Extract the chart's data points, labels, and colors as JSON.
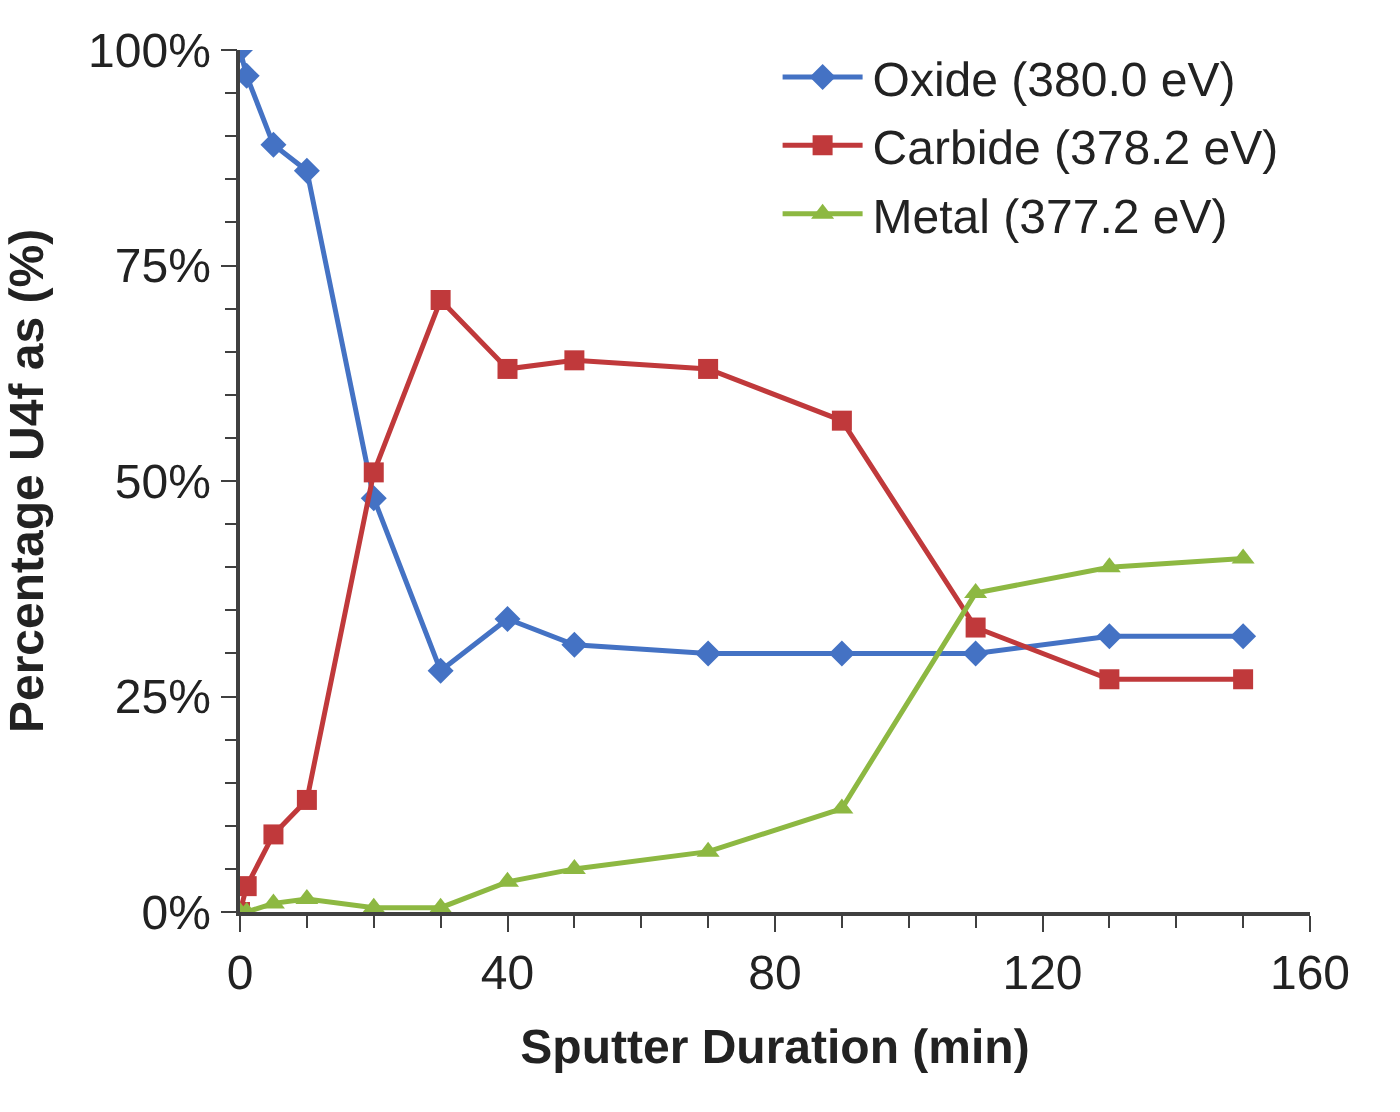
{
  "chart_data": {
    "type": "line",
    "xlabel": "Sputter Duration (min)",
    "ylabel": "Percentage U4f as (%)",
    "x": [
      0,
      1,
      5,
      10,
      20,
      30,
      40,
      50,
      70,
      90,
      110,
      130,
      150
    ],
    "xlim": [
      0,
      160
    ],
    "xticks": [
      0,
      40,
      80,
      120,
      160
    ],
    "ylim": [
      0,
      100
    ],
    "yticks": [
      {
        "value": 0,
        "label": "0%"
      },
      {
        "value": 25,
        "label": "25%"
      },
      {
        "value": 50,
        "label": "50%"
      },
      {
        "value": 75,
        "label": "75%"
      },
      {
        "value": 100,
        "label": "100%"
      }
    ],
    "legend": "top right",
    "line_style": "solid",
    "series": [
      {
        "name": "Oxide (380.0 eV)",
        "color": "#4472c4",
        "marker": "diamond",
        "values": [
          100,
          97,
          89,
          86,
          48,
          28,
          34,
          31,
          30,
          30,
          30,
          32,
          32
        ]
      },
      {
        "name": "Carbide (378.2 eV)",
        "color": "#c0393b",
        "marker": "square",
        "values": [
          0,
          3,
          9,
          13,
          51,
          71,
          63,
          64,
          63,
          57,
          33,
          27,
          27
        ]
      },
      {
        "name": "Metal (377.2 eV)",
        "color": "#8db842",
        "marker": "triangle",
        "values": [
          0,
          0,
          1,
          1.5,
          0.5,
          0.5,
          3.5,
          5,
          7,
          12,
          37,
          40,
          41
        ]
      }
    ]
  }
}
